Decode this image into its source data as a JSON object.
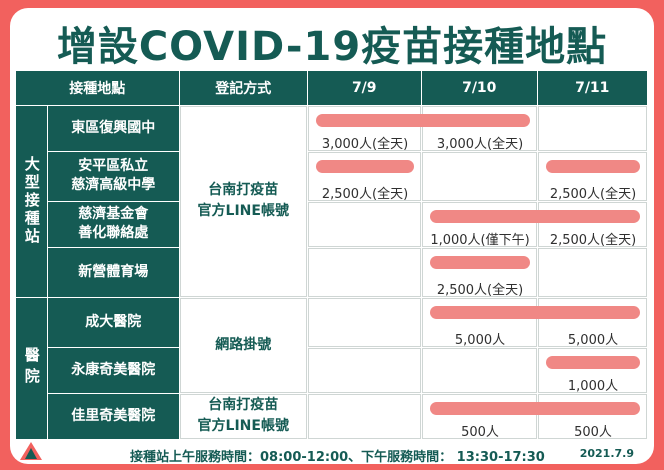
{
  "title": "增設COVID-19疫苗接種地點",
  "headers": {
    "location": "接種地點",
    "method": "登記方式",
    "dates": [
      "7/9",
      "7/10",
      "7/11"
    ]
  },
  "categories": {
    "large_site": "大型接種站",
    "hospital": "醫院"
  },
  "methods": {
    "line": "台南打疫苗\n官方LINE帳號",
    "online": "網路掛號",
    "line_2": "台南打疫苗\n官方LINE帳號"
  },
  "rows": [
    {
      "name": "東區復興國中",
      "cells": [
        "3,000人(全天)",
        "3,000人(全天)",
        ""
      ]
    },
    {
      "name": "安平區私立\n慈濟高級中學",
      "cells": [
        "2,500人(全天)",
        "",
        "2,500人(全天)"
      ]
    },
    {
      "name": "慈濟基金會\n善化聯絡處",
      "cells": [
        "",
        "1,000人(僅下午)",
        "2,500人(全天)"
      ]
    },
    {
      "name": "新營體育場",
      "cells": [
        "",
        "2,500人(全天)",
        ""
      ]
    },
    {
      "name": "成大醫院",
      "cells": [
        "",
        "5,000人",
        "5,000人"
      ]
    },
    {
      "name": "永康奇美醫院",
      "cells": [
        "",
        "",
        "1,000人"
      ]
    },
    {
      "name": "佳里奇美醫院",
      "cells": [
        "",
        "500人",
        "500人"
      ]
    }
  ],
  "footer": {
    "hours": "接種站上午服務時間：08:00-12:00、下午服務時間： 13:30-17:30",
    "date": "2021.7.9"
  },
  "colors": {
    "teal": "#155b54",
    "background_red": "#f2615e",
    "highlight_bar": "#f08885"
  },
  "logo": "tainan-city-logo"
}
